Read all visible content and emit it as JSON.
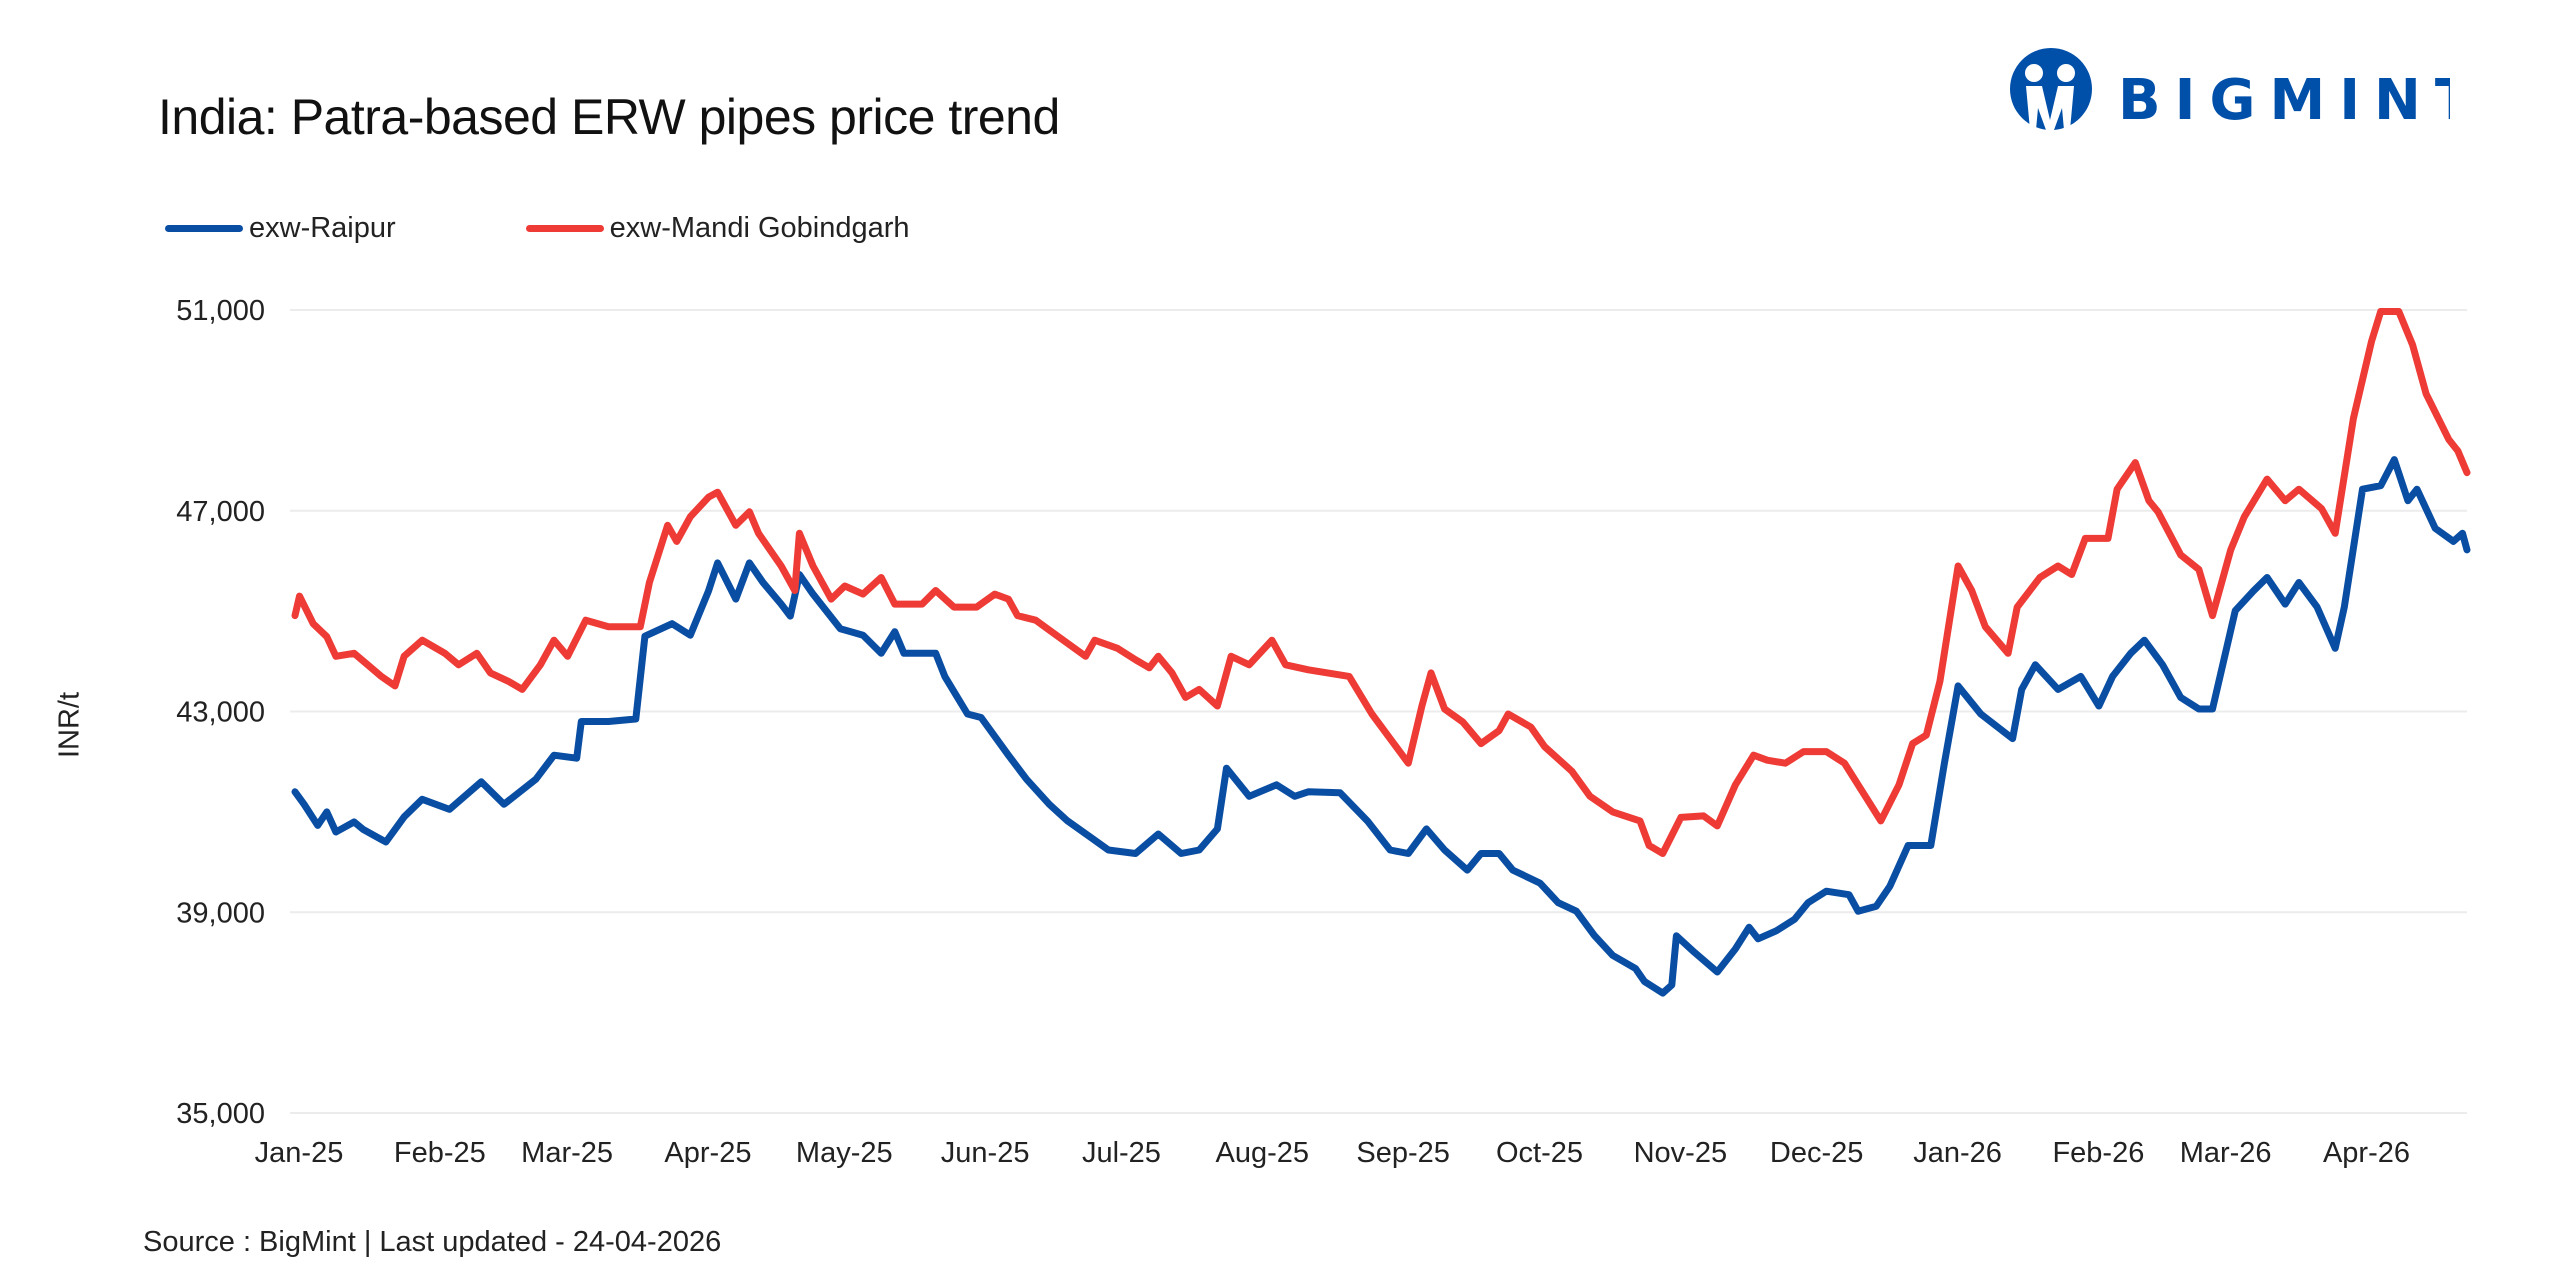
{
  "title": "India: Patra-based ERW pipes price trend",
  "logo_text": "BIGMINT",
  "source": "Source : BigMint | Last updated - 24-04-2026",
  "chart_data": {
    "type": "line",
    "title": "India: Patra-based ERW pipes price trend",
    "xlabel": "",
    "ylabel": "INR/t",
    "ylim": [
      35000,
      51000
    ],
    "yticks": [
      35000,
      39000,
      43000,
      47000,
      51000
    ],
    "ytick_labels": [
      "35,000",
      "39,000",
      "43,000",
      "47,000",
      "51,000"
    ],
    "xlim": [
      "2025-01-01",
      "2026-04-24"
    ],
    "xticks": [
      "2025-01-01",
      "2025-02-01",
      "2025-03-01",
      "2025-04-01",
      "2025-05-01",
      "2025-06-01",
      "2025-07-01",
      "2025-08-01",
      "2025-09-01",
      "2025-10-01",
      "2025-11-01",
      "2025-12-01",
      "2026-01-01",
      "2026-02-01",
      "2026-03-01",
      "2026-04-01"
    ],
    "xtick_labels": [
      "Jan-25",
      "Feb-25",
      "Mar-25",
      "Apr-25",
      "May-25",
      "Jun-25",
      "Jul-25",
      "Aug-25",
      "Sep-25",
      "Oct-25",
      "Nov-25",
      "Dec-25",
      "Jan-26",
      "Feb-26",
      "Mar-26",
      "Apr-26"
    ],
    "grid": "horizontal",
    "legend": "top-left",
    "series": [
      {
        "name": "exw-Raipur",
        "color": "#0A4EA3",
        "points": [
          [
            "2025-01-01",
            41400
          ],
          [
            "2025-01-03",
            41150
          ],
          [
            "2025-01-06",
            40730
          ],
          [
            "2025-01-08",
            41000
          ],
          [
            "2025-01-10",
            40600
          ],
          [
            "2025-01-14",
            40800
          ],
          [
            "2025-01-16",
            40650
          ],
          [
            "2025-01-21",
            40400
          ],
          [
            "2025-01-25",
            40900
          ],
          [
            "2025-01-29",
            41250
          ],
          [
            "2025-02-04",
            41050
          ],
          [
            "2025-02-11",
            41600
          ],
          [
            "2025-02-16",
            41150
          ],
          [
            "2025-02-23",
            41650
          ],
          [
            "2025-02-27",
            42130
          ],
          [
            "2025-03-04",
            42070
          ],
          [
            "2025-03-05",
            42800
          ],
          [
            "2025-03-11",
            42800
          ],
          [
            "2025-03-17",
            42850
          ],
          [
            "2025-03-19",
            44500
          ],
          [
            "2025-03-25",
            44750
          ],
          [
            "2025-03-29",
            44520
          ],
          [
            "2025-04-02",
            45400
          ],
          [
            "2025-04-04",
            45960
          ],
          [
            "2025-04-08",
            45240
          ],
          [
            "2025-04-11",
            45960
          ],
          [
            "2025-04-14",
            45570
          ],
          [
            "2025-04-18",
            45140
          ],
          [
            "2025-04-20",
            44900
          ],
          [
            "2025-04-22",
            45730
          ],
          [
            "2025-04-25",
            45340
          ],
          [
            "2025-05-01",
            44650
          ],
          [
            "2025-05-06",
            44520
          ],
          [
            "2025-05-10",
            44160
          ],
          [
            "2025-05-13",
            44590
          ],
          [
            "2025-05-15",
            44160
          ],
          [
            "2025-05-22",
            44160
          ],
          [
            "2025-05-24",
            43700
          ],
          [
            "2025-05-29",
            42950
          ],
          [
            "2025-06-01",
            42880
          ],
          [
            "2025-06-07",
            42130
          ],
          [
            "2025-06-11",
            41650
          ],
          [
            "2025-06-16",
            41150
          ],
          [
            "2025-06-20",
            40820
          ],
          [
            "2025-06-25",
            40500
          ],
          [
            "2025-06-29",
            40240
          ],
          [
            "2025-07-05",
            40170
          ],
          [
            "2025-07-10",
            40560
          ],
          [
            "2025-07-15",
            40170
          ],
          [
            "2025-07-19",
            40240
          ],
          [
            "2025-07-23",
            40660
          ],
          [
            "2025-07-25",
            41870
          ],
          [
            "2025-07-30",
            41310
          ],
          [
            "2025-08-05",
            41540
          ],
          [
            "2025-08-09",
            41310
          ],
          [
            "2025-08-12",
            41400
          ],
          [
            "2025-08-19",
            41380
          ],
          [
            "2025-08-25",
            40820
          ],
          [
            "2025-08-30",
            40240
          ],
          [
            "2025-09-03",
            40170
          ],
          [
            "2025-09-07",
            40660
          ],
          [
            "2025-09-11",
            40240
          ],
          [
            "2025-09-16",
            39840
          ],
          [
            "2025-09-19",
            40170
          ],
          [
            "2025-09-23",
            40170
          ],
          [
            "2025-09-26",
            39840
          ],
          [
            "2025-10-02",
            39580
          ],
          [
            "2025-10-06",
            39190
          ],
          [
            "2025-10-10",
            39020
          ],
          [
            "2025-10-14",
            38530
          ],
          [
            "2025-10-18",
            38140
          ],
          [
            "2025-10-23",
            37880
          ],
          [
            "2025-10-25",
            37620
          ],
          [
            "2025-10-29",
            37390
          ],
          [
            "2025-10-31",
            37550
          ],
          [
            "2025-11-01",
            38530
          ],
          [
            "2025-11-05",
            38200
          ],
          [
            "2025-11-10",
            37810
          ],
          [
            "2025-11-14",
            38270
          ],
          [
            "2025-11-17",
            38700
          ],
          [
            "2025-11-19",
            38470
          ],
          [
            "2025-11-23",
            38630
          ],
          [
            "2025-11-27",
            38860
          ],
          [
            "2025-11-30",
            39190
          ],
          [
            "2025-12-04",
            39420
          ],
          [
            "2025-12-09",
            39350
          ],
          [
            "2025-12-11",
            39020
          ],
          [
            "2025-12-15",
            39120
          ],
          [
            "2025-12-18",
            39520
          ],
          [
            "2025-12-22",
            40330
          ],
          [
            "2025-12-27",
            40330
          ],
          [
            "2025-12-30",
            41970
          ],
          [
            "2026-01-02",
            43510
          ],
          [
            "2026-01-07",
            42950
          ],
          [
            "2026-01-14",
            42460
          ],
          [
            "2026-01-16",
            43440
          ],
          [
            "2026-01-19",
            43930
          ],
          [
            "2026-01-24",
            43440
          ],
          [
            "2026-01-29",
            43700
          ],
          [
            "2026-02-02",
            43110
          ],
          [
            "2026-02-05",
            43700
          ],
          [
            "2026-02-09",
            44160
          ],
          [
            "2026-02-12",
            44420
          ],
          [
            "2026-02-16",
            43930
          ],
          [
            "2026-02-20",
            43280
          ],
          [
            "2026-02-24",
            43050
          ],
          [
            "2026-02-27",
            43050
          ],
          [
            "2026-03-04",
            45010
          ],
          [
            "2026-03-08",
            45400
          ],
          [
            "2026-03-11",
            45670
          ],
          [
            "2026-03-15",
            45140
          ],
          [
            "2026-03-18",
            45570
          ],
          [
            "2026-03-22",
            45080
          ],
          [
            "2026-03-26",
            44260
          ],
          [
            "2026-03-28",
            45080
          ],
          [
            "2026-04-01",
            47430
          ],
          [
            "2026-04-05",
            47500
          ],
          [
            "2026-04-08",
            48020
          ],
          [
            "2026-04-11",
            47200
          ],
          [
            "2026-04-13",
            47430
          ],
          [
            "2026-04-17",
            46650
          ],
          [
            "2026-04-21",
            46390
          ],
          [
            "2026-04-23",
            46550
          ],
          [
            "2026-04-24",
            46220
          ]
        ]
      },
      {
        "name": "exw-Mandi Gobindgarh",
        "color": "#EE3B36",
        "points": [
          [
            "2025-01-01",
            44910
          ],
          [
            "2025-01-02",
            45300
          ],
          [
            "2025-01-05",
            44750
          ],
          [
            "2025-01-08",
            44490
          ],
          [
            "2025-01-10",
            44100
          ],
          [
            "2025-01-14",
            44160
          ],
          [
            "2025-01-17",
            43930
          ],
          [
            "2025-01-20",
            43700
          ],
          [
            "2025-01-23",
            43510
          ],
          [
            "2025-01-25",
            44100
          ],
          [
            "2025-01-29",
            44420
          ],
          [
            "2025-02-03",
            44160
          ],
          [
            "2025-02-06",
            43930
          ],
          [
            "2025-02-10",
            44160
          ],
          [
            "2025-02-13",
            43770
          ],
          [
            "2025-02-17",
            43600
          ],
          [
            "2025-02-20",
            43440
          ],
          [
            "2025-02-24",
            43930
          ],
          [
            "2025-02-27",
            44420
          ],
          [
            "2025-03-02",
            44100
          ],
          [
            "2025-03-06",
            44820
          ],
          [
            "2025-03-11",
            44690
          ],
          [
            "2025-03-14",
            44690
          ],
          [
            "2025-03-18",
            44690
          ],
          [
            "2025-03-20",
            45570
          ],
          [
            "2025-03-24",
            46710
          ],
          [
            "2025-03-26",
            46390
          ],
          [
            "2025-03-29",
            46880
          ],
          [
            "2025-04-02",
            47270
          ],
          [
            "2025-04-04",
            47370
          ],
          [
            "2025-04-08",
            46710
          ],
          [
            "2025-04-11",
            46980
          ],
          [
            "2025-04-13",
            46550
          ],
          [
            "2025-04-18",
            45900
          ],
          [
            "2025-04-21",
            45410
          ],
          [
            "2025-04-22",
            46550
          ],
          [
            "2025-04-25",
            45900
          ],
          [
            "2025-04-29",
            45240
          ],
          [
            "2025-05-02",
            45500
          ],
          [
            "2025-05-06",
            45340
          ],
          [
            "2025-05-10",
            45670
          ],
          [
            "2025-05-13",
            45140
          ],
          [
            "2025-05-19",
            45140
          ],
          [
            "2025-05-22",
            45410
          ],
          [
            "2025-05-26",
            45080
          ],
          [
            "2025-05-31",
            45080
          ],
          [
            "2025-06-04",
            45340
          ],
          [
            "2025-06-07",
            45240
          ],
          [
            "2025-06-09",
            44910
          ],
          [
            "2025-06-13",
            44820
          ],
          [
            "2025-06-18",
            44490
          ],
          [
            "2025-06-24",
            44100
          ],
          [
            "2025-06-26",
            44420
          ],
          [
            "2025-07-01",
            44260
          ],
          [
            "2025-07-05",
            44030
          ],
          [
            "2025-07-08",
            43870
          ],
          [
            "2025-07-10",
            44100
          ],
          [
            "2025-07-13",
            43770
          ],
          [
            "2025-07-16",
            43280
          ],
          [
            "2025-07-19",
            43440
          ],
          [
            "2025-07-23",
            43110
          ],
          [
            "2025-07-26",
            44100
          ],
          [
            "2025-07-30",
            43930
          ],
          [
            "2025-08-04",
            44420
          ],
          [
            "2025-08-07",
            43930
          ],
          [
            "2025-08-12",
            43830
          ],
          [
            "2025-08-21",
            43700
          ],
          [
            "2025-08-26",
            42950
          ],
          [
            "2025-08-30",
            42460
          ],
          [
            "2025-09-03",
            41970
          ],
          [
            "2025-09-06",
            43110
          ],
          [
            "2025-09-08",
            43770
          ],
          [
            "2025-09-11",
            43050
          ],
          [
            "2025-09-15",
            42790
          ],
          [
            "2025-09-19",
            42360
          ],
          [
            "2025-09-23",
            42620
          ],
          [
            "2025-09-25",
            42950
          ],
          [
            "2025-09-30",
            42690
          ],
          [
            "2025-10-03",
            42300
          ],
          [
            "2025-10-09",
            41810
          ],
          [
            "2025-10-13",
            41310
          ],
          [
            "2025-10-18",
            41000
          ],
          [
            "2025-10-24",
            40820
          ],
          [
            "2025-10-26",
            40330
          ],
          [
            "2025-10-29",
            40170
          ],
          [
            "2025-11-02",
            40890
          ],
          [
            "2025-11-07",
            40920
          ],
          [
            "2025-11-10",
            40720
          ],
          [
            "2025-11-14",
            41540
          ],
          [
            "2025-11-18",
            42130
          ],
          [
            "2025-11-21",
            42030
          ],
          [
            "2025-11-25",
            41970
          ],
          [
            "2025-11-29",
            42200
          ],
          [
            "2025-12-04",
            42200
          ],
          [
            "2025-12-08",
            41970
          ],
          [
            "2025-12-13",
            41250
          ],
          [
            "2025-12-16",
            40820
          ],
          [
            "2025-12-20",
            41540
          ],
          [
            "2025-12-23",
            42360
          ],
          [
            "2025-12-26",
            42530
          ],
          [
            "2025-12-29",
            43600
          ],
          [
            "2026-01-02",
            45900
          ],
          [
            "2026-01-05",
            45410
          ],
          [
            "2026-01-08",
            44690
          ],
          [
            "2026-01-13",
            44160
          ],
          [
            "2026-01-15",
            45080
          ],
          [
            "2026-01-20",
            45670
          ],
          [
            "2026-01-24",
            45900
          ],
          [
            "2026-01-27",
            45730
          ],
          [
            "2026-01-30",
            46450
          ],
          [
            "2026-02-04",
            46450
          ],
          [
            "2026-02-06",
            47430
          ],
          [
            "2026-02-10",
            47960
          ],
          [
            "2026-02-13",
            47200
          ],
          [
            "2026-02-15",
            46980
          ],
          [
            "2026-02-20",
            46120
          ],
          [
            "2026-02-24",
            45830
          ],
          [
            "2026-02-27",
            44910
          ],
          [
            "2026-03-03",
            46220
          ],
          [
            "2026-03-06",
            46880
          ],
          [
            "2026-03-11",
            47630
          ],
          [
            "2026-03-15",
            47200
          ],
          [
            "2026-03-18",
            47430
          ],
          [
            "2026-03-23",
            47040
          ],
          [
            "2026-03-26",
            46550
          ],
          [
            "2026-03-30",
            48840
          ],
          [
            "2026-04-03",
            50380
          ],
          [
            "2026-04-05",
            50970
          ],
          [
            "2026-04-09",
            50970
          ],
          [
            "2026-04-12",
            50310
          ],
          [
            "2026-04-15",
            49330
          ],
          [
            "2026-04-20",
            48420
          ],
          [
            "2026-04-22",
            48190
          ],
          [
            "2026-04-24",
            47760
          ]
        ]
      }
    ]
  }
}
